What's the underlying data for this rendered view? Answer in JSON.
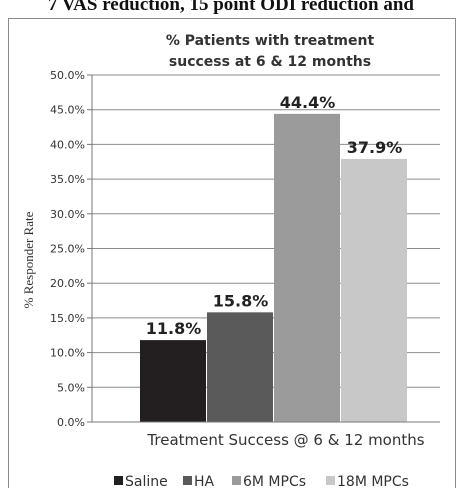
{
  "top_caption": "7 VAS reduction, 15 point ODI reduction and",
  "chart_data": {
    "type": "bar",
    "title_lines": [
      "% Patients with treatment",
      "success at 6 & 12 months"
    ],
    "xlabel": "Treatment Success @ 6 & 12 months",
    "ylabel": "% Responder Rate",
    "ylim": [
      0,
      50
    ],
    "y_ticks": [
      "0.0%",
      "5.0%",
      "10.0%",
      "15.0%",
      "20.0%",
      "25.0%",
      "30.0%",
      "35.0%",
      "40.0%",
      "45.0%",
      "50.0%"
    ],
    "grid": true,
    "legend_position": "bottom",
    "series": [
      {
        "name": "Saline",
        "value": 11.8,
        "label": "11.8%",
        "color": "#231f20"
      },
      {
        "name": "HA",
        "value": 15.8,
        "label": "15.8%",
        "color": "#5a5a5a"
      },
      {
        "name": "6M MPCs",
        "value": 44.4,
        "label": "44.4%",
        "color": "#9b9b9b"
      },
      {
        "name": "18M MPCs",
        "value": 37.9,
        "label": "37.9%",
        "color": "#c8c8c8"
      }
    ]
  }
}
